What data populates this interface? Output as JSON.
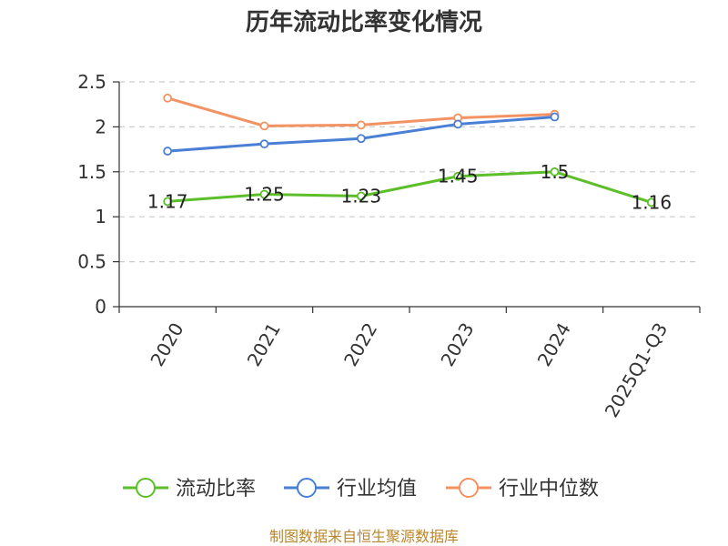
{
  "chart_data": {
    "type": "line",
    "title": "历年流动比率变化情况",
    "categories": [
      "2020",
      "2021",
      "2022",
      "2023",
      "2024",
      "2025Q1-Q3"
    ],
    "ylim": [
      0,
      2.5
    ],
    "yticks": [
      "0",
      "0.5",
      "1",
      "1.5",
      "2",
      "2.5"
    ],
    "ytick_values": [
      0,
      0.5,
      1,
      1.5,
      2,
      2.5
    ],
    "grid": true,
    "legend_position": "bottom",
    "series": [
      {
        "name": "流动比率",
        "color": "#5cbf2a",
        "values": [
          1.17,
          1.25,
          1.23,
          1.45,
          1.5,
          1.16
        ],
        "labels": [
          "1.17",
          "1.25",
          "1.23",
          "1.45",
          "1.5",
          "1.16"
        ]
      },
      {
        "name": "行业均值",
        "color": "#4a7fd6",
        "values": [
          1.73,
          1.81,
          1.87,
          2.03,
          2.11,
          null
        ]
      },
      {
        "name": "行业中位数",
        "color": "#f39262",
        "values": [
          2.32,
          2.01,
          2.02,
          2.1,
          2.14,
          null
        ]
      }
    ]
  },
  "source": "制图数据来自恒生聚源数据库"
}
